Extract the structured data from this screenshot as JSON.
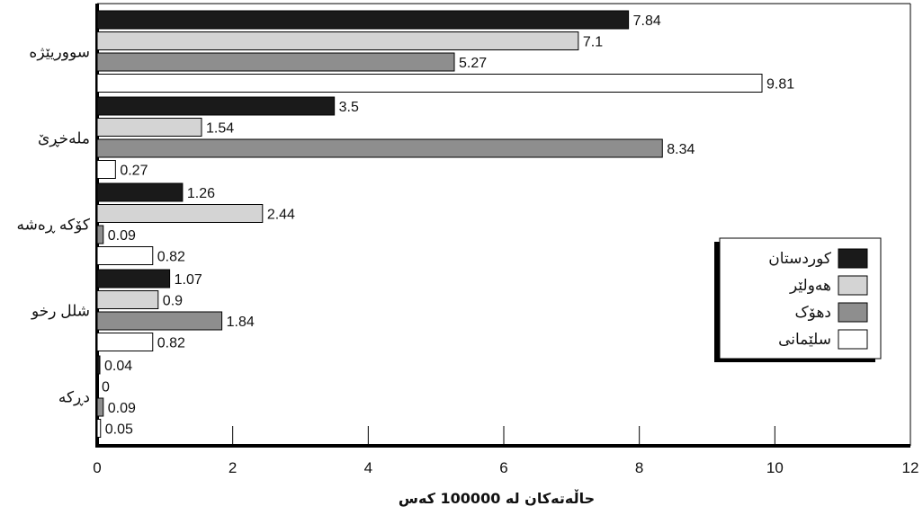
{
  "chart_data": {
    "type": "bar",
    "orientation": "horizontal",
    "title": "",
    "xlabel": "حاڵەتەکان لە 100000 کەس",
    "ylabel": "",
    "xlim": [
      0,
      12
    ],
    "xticks": [
      0,
      2,
      4,
      6,
      8,
      10,
      12
    ],
    "grid": false,
    "legend_position": "right",
    "categories": [
      "سووریێژە",
      "ملەخڕێ",
      "کۆکە ڕەشە",
      "شلل رخو",
      "دڕکە"
    ],
    "series": [
      {
        "name": "کوردستان",
        "color": "#1a1a1a",
        "values": [
          7.84,
          3.5,
          1.26,
          1.07,
          0.04
        ],
        "labels": [
          "7.84",
          "3.5",
          "1.26",
          "1.07",
          "0.04"
        ]
      },
      {
        "name": "هەولێر",
        "color": "#d4d4d4",
        "values": [
          7.1,
          1.54,
          2.44,
          0.9,
          0
        ],
        "labels": [
          "7.1",
          "1.54",
          "2.44",
          "0.9",
          "0"
        ]
      },
      {
        "name": "دهۆک",
        "color": "#8e8e8e",
        "values": [
          5.27,
          8.34,
          0.09,
          1.84,
          0.09
        ],
        "labels": [
          "5.27",
          "8.34",
          "0.09",
          "1.84",
          "0.09"
        ]
      },
      {
        "name": "سلێمانی",
        "color": "#ffffff",
        "values": [
          9.81,
          0.27,
          0.82,
          0.82,
          0.05
        ],
        "labels": [
          "9.81",
          "0.27",
          "0.82",
          "0.82",
          "0.05"
        ]
      }
    ]
  }
}
